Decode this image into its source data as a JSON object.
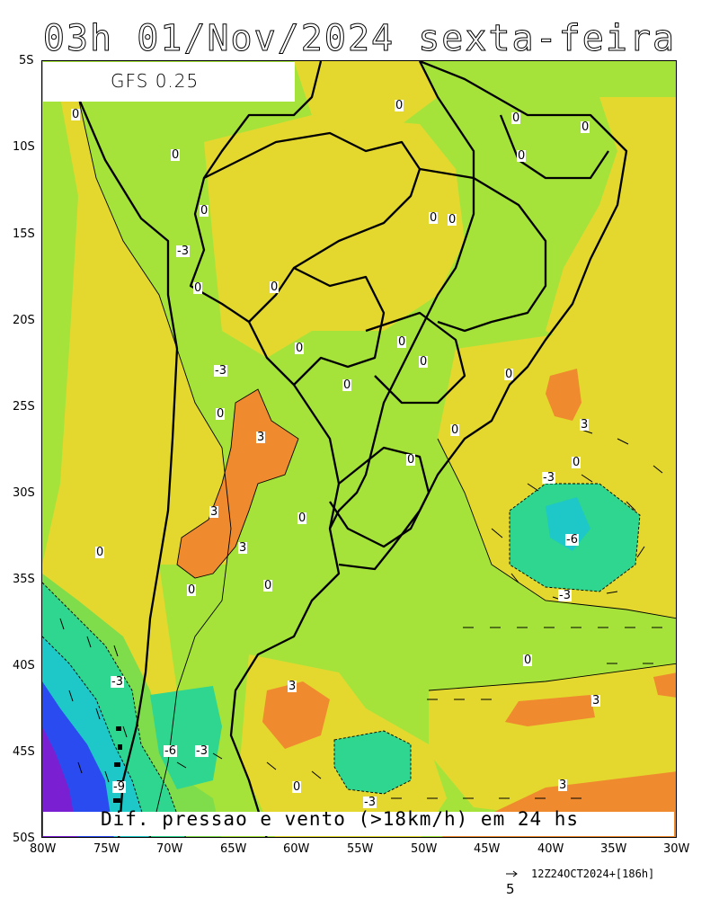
{
  "title": "03h 01/Nov/2024 sexta-feira",
  "model": "GFS 0.25",
  "footer_label": "Dif. pressao e vento (>18km/h) em 24 hs",
  "run_info": "12Z24OCT2024+[186h]",
  "wind_scale_value": "5",
  "lat_labels": [
    "5S",
    "10S",
    "15S",
    "20S",
    "25S",
    "30S",
    "35S",
    "40S",
    "45S",
    "50S"
  ],
  "lon_labels": [
    "80W",
    "75W",
    "70W",
    "65W",
    "60W",
    "55W",
    "50W",
    "45W",
    "40W",
    "35W",
    "30W"
  ],
  "contour_labels": {
    "zero": "0",
    "neg3": "-3",
    "pos3": "3",
    "neg6": "-6",
    "neg9": "-9"
  },
  "colors": {
    "lightgreen": "#a6e33a",
    "yellow": "#e4d82f",
    "orange": "#f08a2e",
    "green": "#7fdc4a",
    "teal": "#2ed68f",
    "cyan": "#1ec8c8",
    "blue": "#2a4bef",
    "purple": "#7a1fd2",
    "border": "#000000"
  }
}
